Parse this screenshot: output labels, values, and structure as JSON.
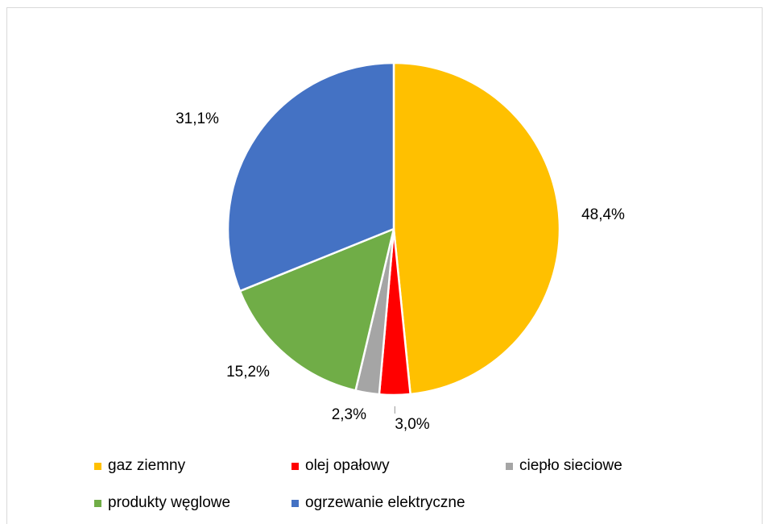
{
  "chart_data": {
    "type": "pie",
    "title": "",
    "categories": [
      "gaz ziemny",
      "olej opałowy",
      "ciepło sieciowe",
      "produkty węglowe",
      "ogrzewanie elektryczne"
    ],
    "values": [
      48.4,
      3.0,
      2.3,
      15.2,
      31.1
    ],
    "data_labels": [
      "48,4%",
      "3,0%",
      "2,3%",
      "15,2%",
      "31,1%"
    ],
    "colors": [
      "#FFC000",
      "#FF0000",
      "#A5A5A5",
      "#70AD47",
      "#4472C4"
    ],
    "start_angle": "12 o'clock",
    "direction": "clockwise",
    "legend_position": "bottom"
  },
  "legend": {
    "items": [
      {
        "label": "gaz ziemny",
        "color": "#FFC000"
      },
      {
        "label": "olej opałowy",
        "color": "#FF0000"
      },
      {
        "label": "ciepło sieciowe",
        "color": "#A5A5A5"
      },
      {
        "label": "produkty węglowe",
        "color": "#70AD47"
      },
      {
        "label": "ogrzewanie elektryczne",
        "color": "#4472C4"
      }
    ]
  }
}
